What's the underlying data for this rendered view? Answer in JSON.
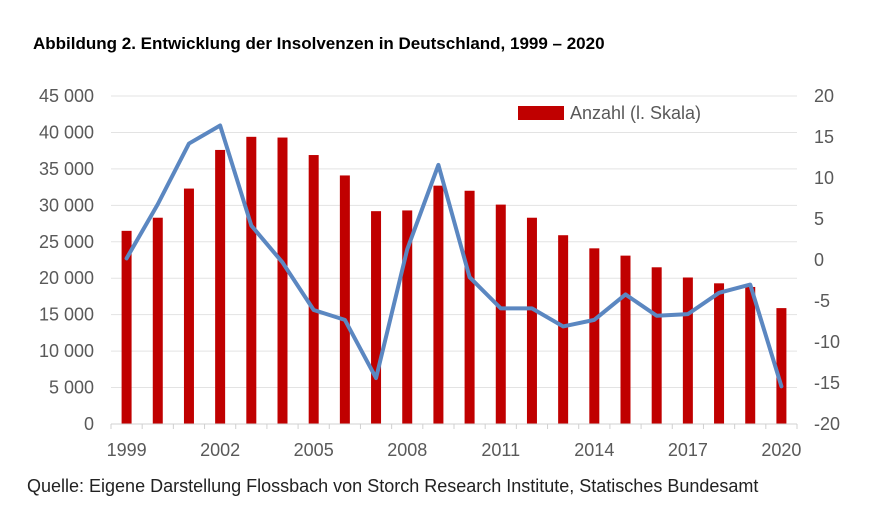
{
  "title": "Abbildung 2. Entwicklung der Insolvenzen in Deutschland, 1999 – 2020",
  "source": "Quelle: Eigene Darstellung Flossbach von Storch Research Institute, Statisches Bundesamt",
  "chart_data": {
    "type": "bar",
    "title": "Abbildung 2. Entwicklung der Insolvenzen in Deutschland, 1999 – 2020",
    "x": [
      1999,
      2000,
      2001,
      2002,
      2003,
      2004,
      2005,
      2006,
      2007,
      2008,
      2009,
      2010,
      2011,
      2012,
      2013,
      2014,
      2015,
      2016,
      2017,
      2018,
      2019,
      2020
    ],
    "x_tick_labels": [
      "1999",
      "2002",
      "2005",
      "2008",
      "2011",
      "2014",
      "2017",
      "2020"
    ],
    "y_left_ticks": [
      "0",
      "5 000",
      "10 000",
      "15 000",
      "20 000",
      "25 000",
      "30 000",
      "35 000",
      "40 000",
      "45 000"
    ],
    "y_right_ticks": [
      "-20",
      "-15",
      "-10",
      "-5",
      "0",
      "5",
      "10",
      "15",
      "20"
    ],
    "ylim_left": [
      0,
      45000
    ],
    "ylim_right": [
      -20,
      20
    ],
    "legend_position": "top-right",
    "grid": true,
    "series": [
      {
        "name": "Anzahl (l. Skala)",
        "type": "bar",
        "axis": "left",
        "color": "#c00000",
        "values": [
          26500,
          28300,
          32300,
          37600,
          39400,
          39300,
          36900,
          34100,
          29200,
          29300,
          32700,
          32000,
          30100,
          28300,
          25900,
          24100,
          23100,
          21500,
          20100,
          19300,
          18800,
          15900
        ]
      },
      {
        "type": "line",
        "axis": "right",
        "color": "#5b87c1",
        "values": [
          0.2,
          6.8,
          14.2,
          16.4,
          4.2,
          -0.3,
          -6.1,
          -7.3,
          -14.4,
          1.3,
          11.6,
          -2.1,
          -5.9,
          -5.9,
          -8.1,
          -7.3,
          -4.2,
          -6.8,
          -6.6,
          -4.0,
          -3.0,
          -15.4
        ]
      }
    ]
  }
}
